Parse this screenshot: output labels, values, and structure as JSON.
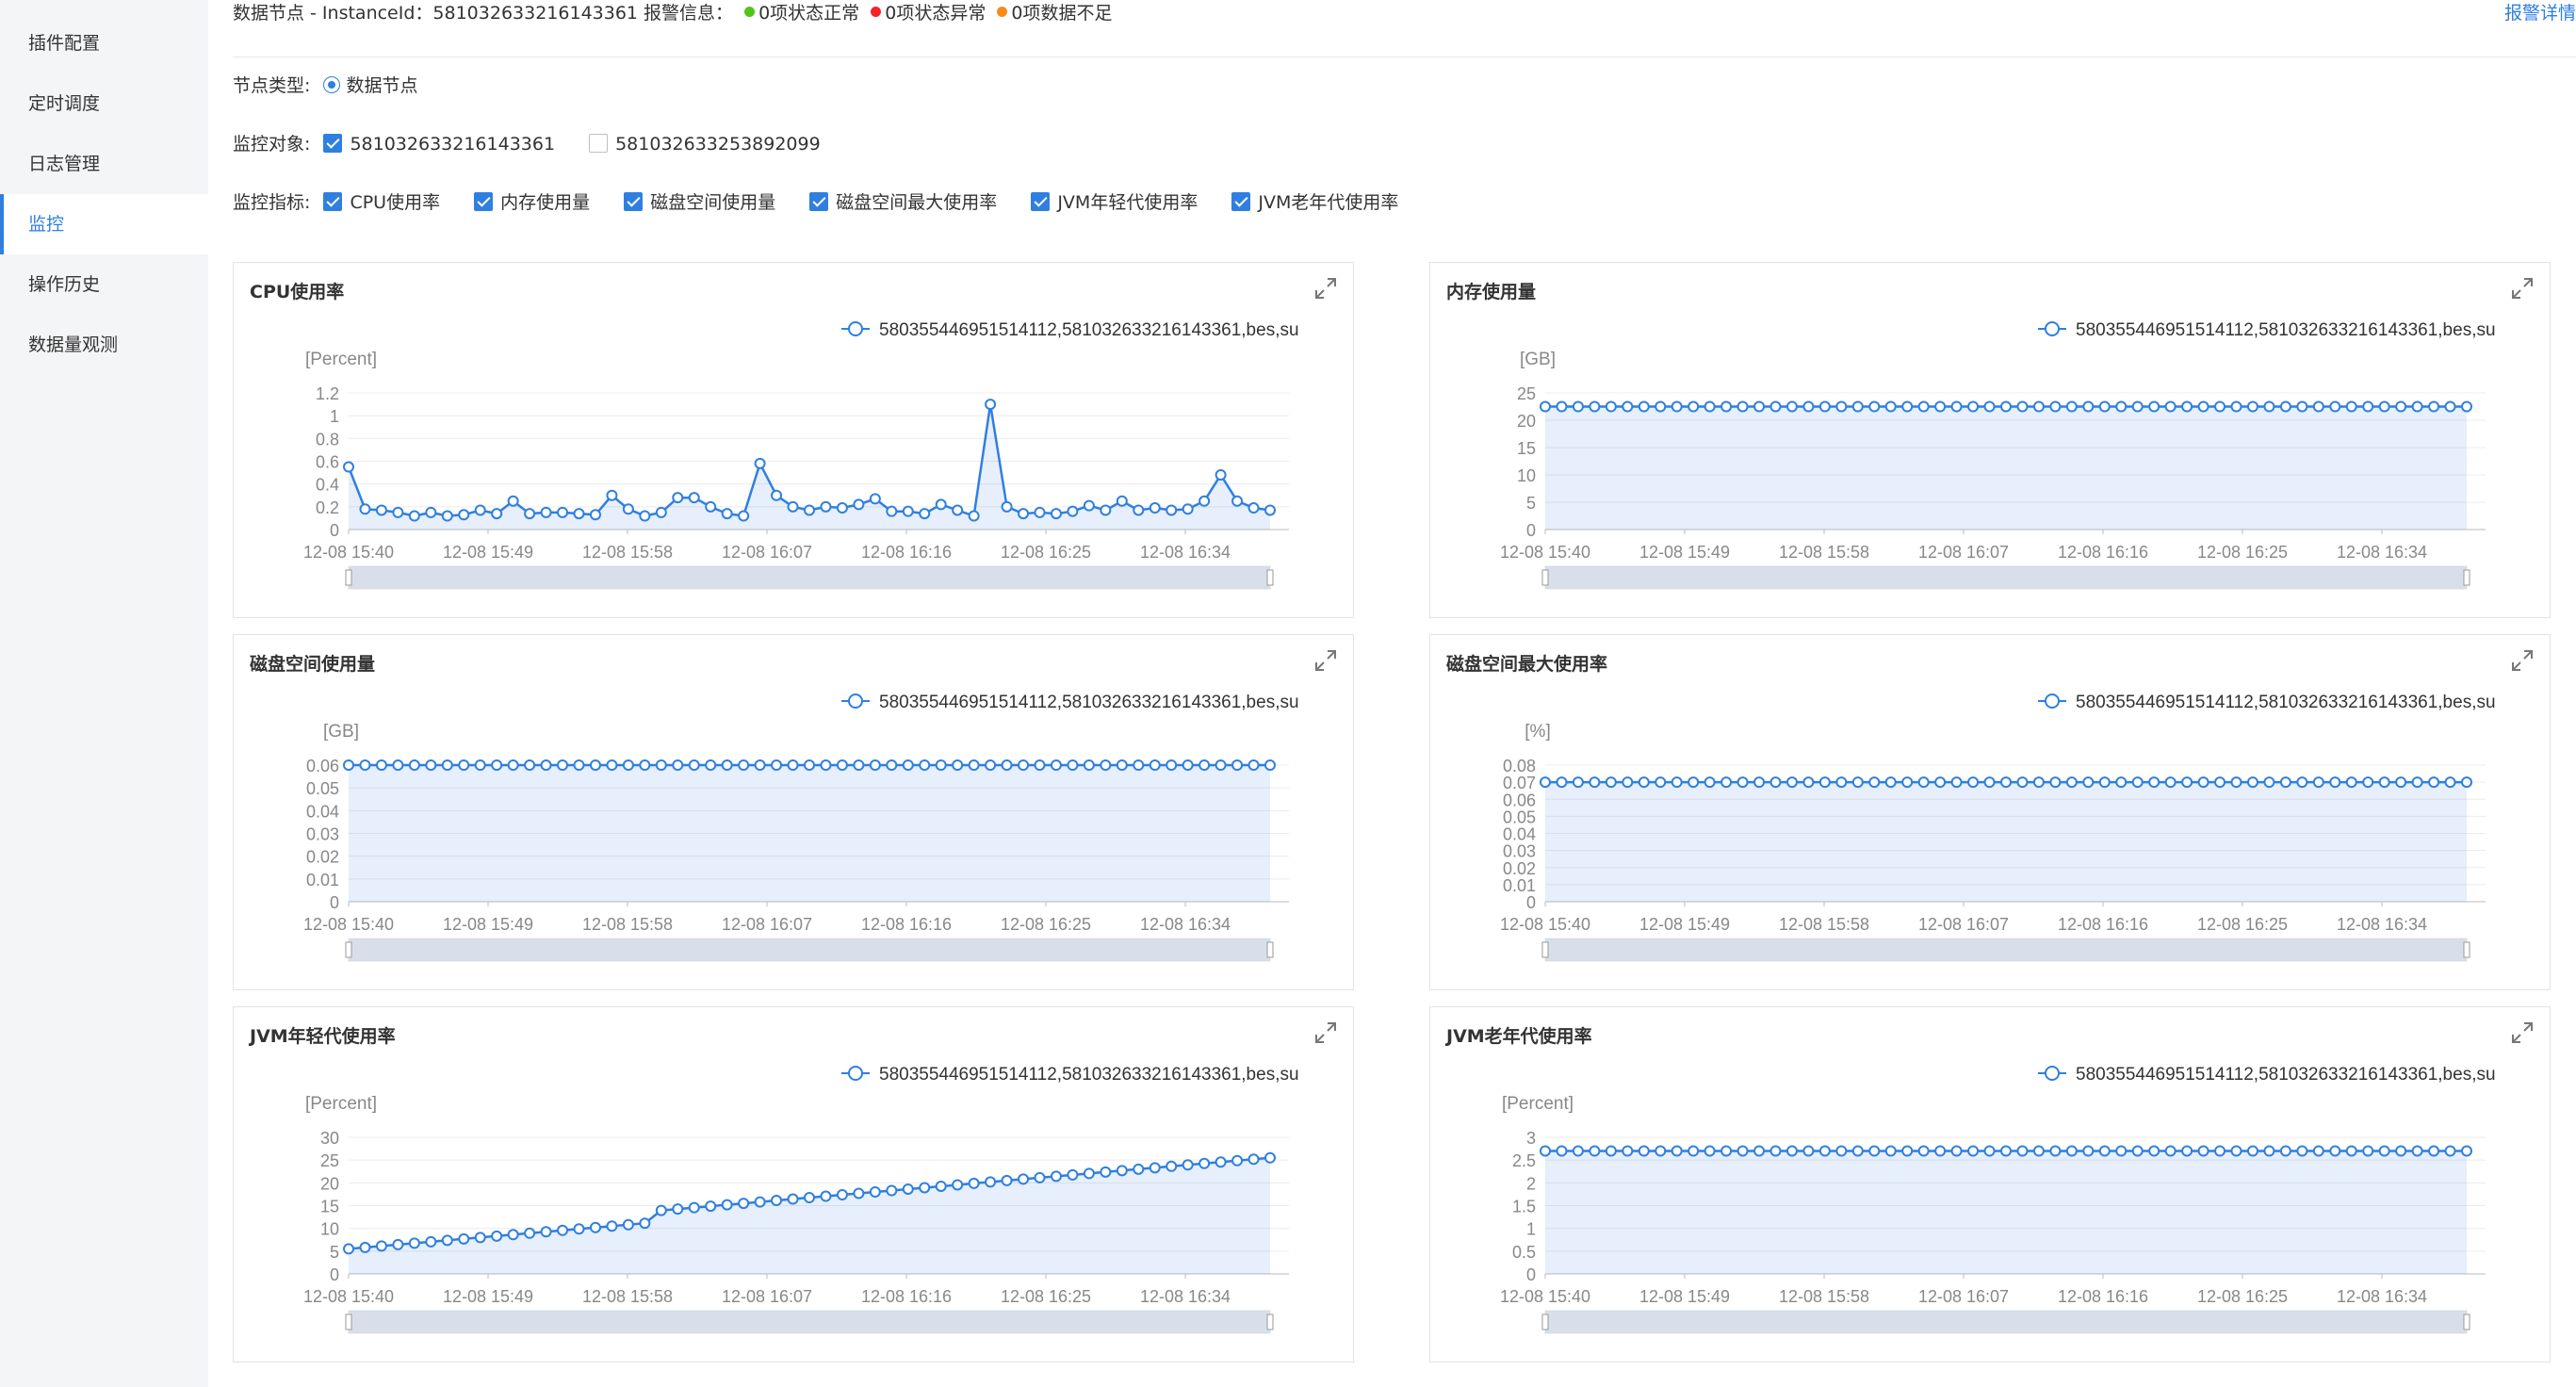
{
  "sidebar": {
    "items": [
      {
        "label": "插件配置",
        "active": false
      },
      {
        "label": "定时调度",
        "active": false
      },
      {
        "label": "日志管理",
        "active": false
      },
      {
        "label": "监控",
        "active": true
      },
      {
        "label": "操作历史",
        "active": false
      },
      {
        "label": "数据量观测",
        "active": false
      }
    ]
  },
  "header": {
    "info": "数据节点 - InstanceId：581032633216143361 报警信息：",
    "status_ok": "0项状态正常",
    "status_error": "0项状态异常",
    "status_insufficient": "0项数据不足",
    "detail_link": "报警详情",
    "colors": {
      "ok": "#52c41a",
      "error": "#f5222d",
      "insufficient": "#fa8c16",
      "accent": "#2f7fe0"
    }
  },
  "filters": {
    "node_type_label": "节点类型:",
    "node_type_option": "数据节点",
    "target_label": "监控对象:",
    "targets": [
      {
        "label": "581032633216143361",
        "checked": true
      },
      {
        "label": "581032633253892099",
        "checked": false
      }
    ],
    "metric_label": "监控指标:",
    "metrics": [
      {
        "label": "CPU使用率",
        "checked": true
      },
      {
        "label": "内存使用量",
        "checked": true
      },
      {
        "label": "磁盘空间使用量",
        "checked": true
      },
      {
        "label": "磁盘空间最大使用率",
        "checked": true
      },
      {
        "label": "JVM年轻代使用率",
        "checked": true
      },
      {
        "label": "JVM老年代使用率",
        "checked": true
      }
    ]
  },
  "chart_data": [
    {
      "type": "line",
      "title": "CPU使用率",
      "ylabel": "[Percent]",
      "legend": "580355446951514112,581032633216143361,bes,su",
      "yticks": [
        "1.2",
        "1",
        "0.8",
        "0.6",
        "0.4",
        "0.2",
        "0"
      ],
      "ylim": [
        0,
        1.2
      ],
      "xticks": [
        "12-08 15:40",
        "12-08 15:49",
        "12-08 15:58",
        "12-08 16:07",
        "12-08 16:16",
        "12-08 16:25",
        "12-08 16:34"
      ],
      "values": [
        0.55,
        0.18,
        0.17,
        0.15,
        0.12,
        0.15,
        0.12,
        0.13,
        0.17,
        0.14,
        0.25,
        0.14,
        0.15,
        0.15,
        0.14,
        0.13,
        0.3,
        0.18,
        0.12,
        0.15,
        0.28,
        0.28,
        0.2,
        0.14,
        0.12,
        0.58,
        0.3,
        0.2,
        0.17,
        0.2,
        0.19,
        0.22,
        0.27,
        0.16,
        0.16,
        0.14,
        0.22,
        0.17,
        0.12,
        1.1,
        0.2,
        0.14,
        0.15,
        0.14,
        0.16,
        0.21,
        0.17,
        0.25,
        0.17,
        0.19,
        0.17,
        0.18,
        0.25,
        0.48,
        0.25,
        0.19,
        0.17
      ]
    },
    {
      "type": "area",
      "title": "内存使用量",
      "ylabel": "[GB]",
      "legend": "580355446951514112,581032633216143361,bes,su",
      "yticks": [
        "25",
        "20",
        "15",
        "10",
        "5",
        "0"
      ],
      "ylim": [
        0,
        25
      ],
      "xticks": [
        "12-08 15:40",
        "12-08 15:49",
        "12-08 15:58",
        "12-08 16:07",
        "12-08 16:16",
        "12-08 16:25",
        "12-08 16:34"
      ],
      "constant": 22.5
    },
    {
      "type": "area",
      "title": "磁盘空间使用量",
      "ylabel": "[GB]",
      "legend": "580355446951514112,581032633216143361,bes,su",
      "yticks": [
        "0.06",
        "0.05",
        "0.04",
        "0.03",
        "0.02",
        "0.01",
        "0"
      ],
      "ylim": [
        0,
        0.06
      ],
      "xticks": [
        "12-08 15:40",
        "12-08 15:49",
        "12-08 15:58",
        "12-08 16:07",
        "12-08 16:16",
        "12-08 16:25",
        "12-08 16:34"
      ],
      "constant": 0.06
    },
    {
      "type": "area",
      "title": "磁盘空间最大使用率",
      "ylabel": "[%]",
      "legend": "580355446951514112,581032633216143361,bes,su",
      "yticks": [
        "0.08",
        "0.07",
        "0.06",
        "0.05",
        "0.04",
        "0.03",
        "0.02",
        "0.01",
        "0"
      ],
      "ylim": [
        0,
        0.08
      ],
      "xticks": [
        "12-08 15:40",
        "12-08 15:49",
        "12-08 15:58",
        "12-08 16:07",
        "12-08 16:16",
        "12-08 16:25",
        "12-08 16:34"
      ],
      "constant": 0.07
    },
    {
      "type": "area",
      "title": "JVM年轻代使用率",
      "ylabel": "[Percent]",
      "legend": "580355446951514112,581032633216143361,bes,su",
      "yticks": [
        "30",
        "25",
        "20",
        "15",
        "10",
        "5",
        "0"
      ],
      "ylim": [
        0,
        30
      ],
      "xticks": [
        "12-08 15:40",
        "12-08 15:49",
        "12-08 15:58",
        "12-08 16:07",
        "12-08 16:16",
        "12-08 16:25",
        "12-08 16:34"
      ],
      "linear_from": 5.5,
      "linear_to": 25.5,
      "jump_at": 0.33,
      "jump": 2.5
    },
    {
      "type": "area",
      "title": "JVM老年代使用率",
      "ylabel": "[Percent]",
      "legend": "580355446951514112,581032633216143361,bes,su",
      "yticks": [
        "3",
        "2.5",
        "2",
        "1.5",
        "1",
        "0.5",
        "0"
      ],
      "ylim": [
        0,
        3
      ],
      "xticks": [
        "12-08 15:40",
        "12-08 15:49",
        "12-08 15:58",
        "12-08 16:07",
        "12-08 16:16",
        "12-08 16:25",
        "12-08 16:34"
      ],
      "constant": 2.7
    }
  ]
}
